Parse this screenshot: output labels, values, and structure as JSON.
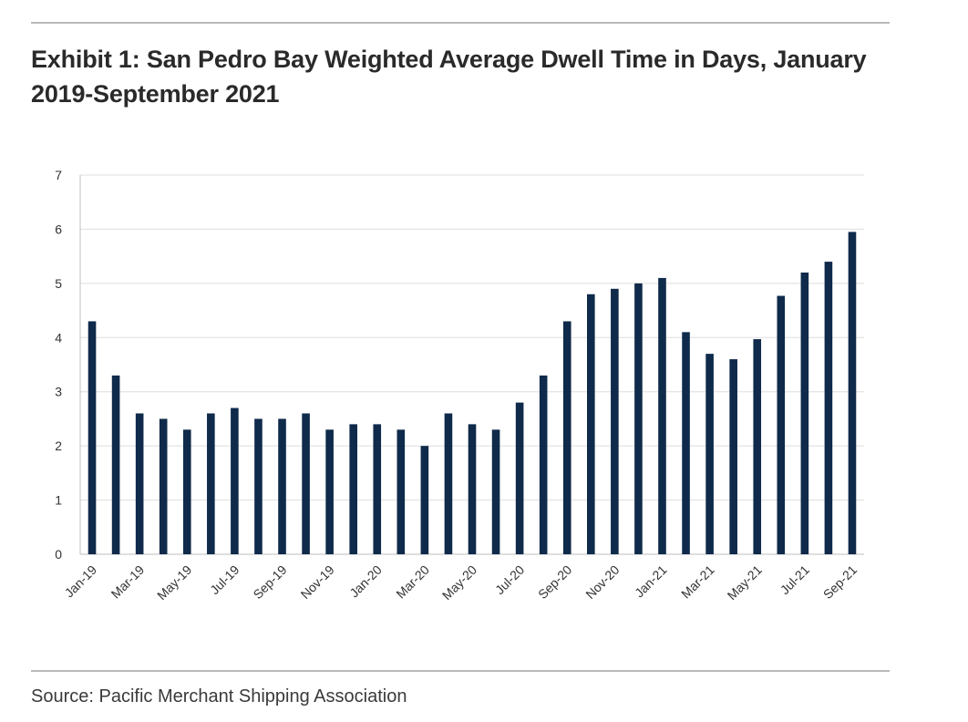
{
  "header": {
    "title": "Exhibit 1: San Pedro Bay Weighted Average Dwell Time in Days, January 2019-September 2021"
  },
  "footer": {
    "source": "Source: Pacific Merchant Shipping Association"
  },
  "chart_data": {
    "type": "bar",
    "title": "Exhibit 1: San Pedro Bay Weighted Average Dwell Time in Days, January 2019-September 2021",
    "xlabel": "",
    "ylabel": "",
    "ylim": [
      0,
      7
    ],
    "yticks": [
      0,
      1,
      2,
      3,
      4,
      5,
      6,
      7
    ],
    "grid": true,
    "legend": "none",
    "bar_color": "#0f2a4a",
    "categories": [
      "Jan-19",
      "Feb-19",
      "Mar-19",
      "Apr-19",
      "May-19",
      "Jun-19",
      "Jul-19",
      "Aug-19",
      "Sep-19",
      "Oct-19",
      "Nov-19",
      "Dec-19",
      "Jan-20",
      "Feb-20",
      "Mar-20",
      "Apr-20",
      "May-20",
      "Jun-20",
      "Jul-20",
      "Aug-20",
      "Sep-20",
      "Oct-20",
      "Nov-20",
      "Dec-20",
      "Jan-21",
      "Feb-21",
      "Mar-21",
      "Apr-21",
      "May-21",
      "Jun-21",
      "Jul-21",
      "Aug-21",
      "Sep-21"
    ],
    "tick_labels": [
      "Jan-19",
      "Mar-19",
      "May-19",
      "Jul-19",
      "Sep-19",
      "Nov-19",
      "Jan-20",
      "Mar-20",
      "May-20",
      "Jul-20",
      "Sep-20",
      "Nov-20",
      "Jan-21",
      "Mar-21",
      "May-21",
      "Jul-21",
      "Sep-21"
    ],
    "values": [
      4.3,
      3.3,
      2.6,
      2.5,
      2.3,
      2.6,
      2.7,
      2.5,
      2.5,
      2.6,
      2.3,
      2.4,
      2.4,
      2.3,
      2.0,
      2.6,
      2.4,
      2.3,
      2.8,
      3.3,
      4.3,
      4.8,
      4.9,
      5.0,
      5.1,
      4.1,
      3.7,
      3.6,
      3.97,
      4.77,
      5.2,
      5.4,
      5.95
    ]
  }
}
